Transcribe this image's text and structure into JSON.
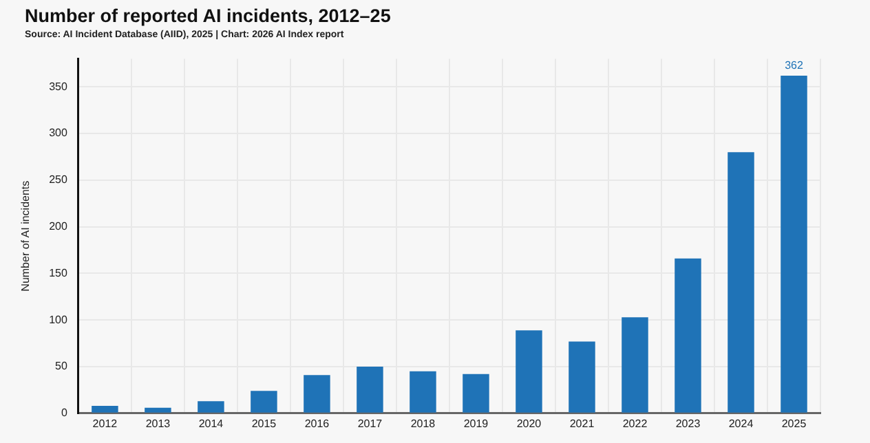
{
  "chart_data": {
    "type": "bar",
    "title": "Number of reported AI incidents, 2012–25",
    "subtitle": "Source: AI Incident Database (AIID), 2025 | Chart: 2026 AI Index report",
    "ylabel": "Number of AI incidents",
    "categories": [
      "2012",
      "2013",
      "2014",
      "2015",
      "2016",
      "2017",
      "2018",
      "2019",
      "2020",
      "2021",
      "2022",
      "2023",
      "2024",
      "2025"
    ],
    "values": [
      8,
      6,
      13,
      24,
      41,
      50,
      45,
      42,
      89,
      77,
      103,
      166,
      280,
      362
    ],
    "value_labels": [
      null,
      null,
      null,
      null,
      null,
      null,
      null,
      null,
      null,
      null,
      null,
      null,
      null,
      "362"
    ],
    "color": "#1f73b7",
    "ylim": [
      0,
      380
    ],
    "yticks": [
      0,
      50,
      100,
      150,
      200,
      250,
      300,
      350
    ],
    "grid": true,
    "legend": false
  }
}
